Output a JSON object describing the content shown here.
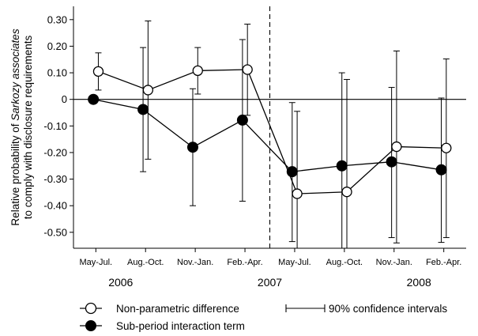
{
  "chart_data": {
    "type": "line",
    "ylabel_line1_prefix": "Relative probability of ",
    "ylabel_line1_italic": "Sarkozy associates",
    "ylabel_line2": "to comply with disclosure requirements",
    "categories": [
      "May-Jul.",
      "Aug.-Oct.",
      "Nov.-Jan.",
      "Feb.-Apr.",
      "May-Jul.",
      "Aug.-Oct.",
      "Nov.-Jan.",
      "Feb.-Apr."
    ],
    "years": [
      {
        "label": "2006",
        "at": 1.5
      },
      {
        "label": "2007",
        "at": 4.5
      },
      {
        "label": "2008",
        "at": 7.5
      }
    ],
    "yticks": [
      0.3,
      0.2,
      0.1,
      0,
      -0.1,
      -0.2,
      -0.3,
      -0.4,
      -0.5
    ],
    "ytick_labels": [
      "0.30",
      "0.20",
      "0.10",
      "0",
      "-0.10",
      "-0.20",
      "-0.30",
      "-0.40",
      "-0.50"
    ],
    "ylim": [
      -0.56,
      0.35
    ],
    "xlim": [
      0.55,
      8.45
    ],
    "reference_line_y": 0,
    "divider_x": 4.5,
    "series": [
      {
        "name": "Non-parametric difference",
        "marker": "hollow-circle",
        "color": "#000000",
        "points": [
          {
            "x": 1.05,
            "y": 0.105,
            "lo": 0.035,
            "hi": 0.175
          },
          {
            "x": 2.05,
            "y": 0.035,
            "lo": -0.225,
            "hi": 0.295
          },
          {
            "x": 3.05,
            "y": 0.108,
            "lo": 0.02,
            "hi": 0.195
          },
          {
            "x": 4.05,
            "y": 0.112,
            "lo": -0.06,
            "hi": 0.283
          },
          {
            "x": 5.05,
            "y": -0.355,
            "lo": -0.56,
            "hi": -0.045
          },
          {
            "x": 6.05,
            "y": -0.348,
            "lo": -0.56,
            "hi": 0.075
          },
          {
            "x": 7.05,
            "y": -0.178,
            "lo": -0.54,
            "hi": 0.182
          },
          {
            "x": 8.05,
            "y": -0.183,
            "lo": -0.52,
            "hi": 0.152
          }
        ]
      },
      {
        "name": "Sub-period interaction term",
        "marker": "filled-circle",
        "color": "#000000",
        "points": [
          {
            "x": 0.95,
            "y": 0.0
          },
          {
            "x": 1.95,
            "y": -0.038,
            "lo": -0.272,
            "hi": 0.195
          },
          {
            "x": 2.95,
            "y": -0.18,
            "lo": -0.4,
            "hi": 0.04
          },
          {
            "x": 3.95,
            "y": -0.078,
            "lo": -0.383,
            "hi": 0.225
          },
          {
            "x": 4.95,
            "y": -0.272,
            "lo": -0.535,
            "hi": -0.012
          },
          {
            "x": 5.95,
            "y": -0.25,
            "lo": -0.56,
            "hi": 0.1
          },
          {
            "x": 6.95,
            "y": -0.235,
            "lo": -0.52,
            "hi": 0.045
          },
          {
            "x": 7.95,
            "y": -0.265,
            "lo": -0.538,
            "hi": 0.005
          }
        ]
      }
    ],
    "legend": {
      "items": [
        {
          "label": "Non-parametric difference",
          "marker": "hollow-circle"
        },
        {
          "label": "Sub-period interaction term",
          "marker": "filled-circle"
        }
      ],
      "ci_label": "90% confidence intervals"
    }
  }
}
